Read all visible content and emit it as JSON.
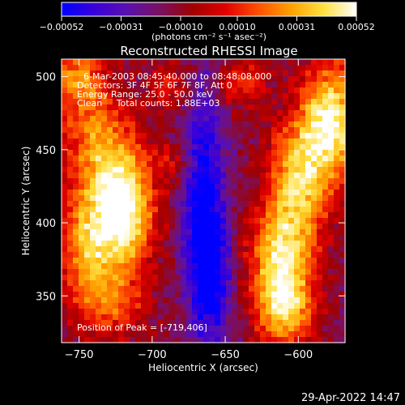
{
  "chart_data": {
    "type": "heatmap",
    "title": "Reconstructed RHESSI Image",
    "xlabel": "Heliocentric X (arcsec)",
    "ylabel": "Heliocentric Y (arcsec)",
    "xlim": [
      -762,
      -568
    ],
    "ylim": [
      318,
      512
    ],
    "x_ticks": [
      -750,
      -700,
      -650,
      -600
    ],
    "x_tick_labels": [
      "−750",
      "−700",
      "−650",
      "−600"
    ],
    "y_ticks": [
      350,
      400,
      450,
      500
    ],
    "y_tick_labels": [
      "350",
      "400",
      "450",
      "500"
    ],
    "colorbar": {
      "range": [
        -0.00052,
        0.00052
      ],
      "ticks": [
        -0.00052,
        -0.00031,
        -0.0001,
        0.0001,
        0.00031,
        0.00052
      ],
      "tick_labels": [
        "−0.00052",
        "−0.00031",
        "−0.00010",
        "0.00010",
        "0.00031",
        "0.00052"
      ],
      "unit_label": "(photons cm⁻² s⁻¹ asec⁻²)",
      "colormap_stops": [
        "#0000ff",
        "#3a00d8",
        "#5a10b0",
        "#7a1060",
        "#a00000",
        "#e00000",
        "#ff5000",
        "#ffa000",
        "#ffe040",
        "#ffffff"
      ]
    },
    "annotations": [
      "6-Mar-2003 08:45:40.000 to 08:48:08.000",
      "Detectors: 3F 4F 5F 6F 7F 8F, Att 0",
      "Energy Range: 25.0 - 50.0 keV",
      "Clean     Total counts: 1.88E+03"
    ],
    "peak_label": "Position of Peak = [-719,406]",
    "peak": [
      -719,
      406
    ],
    "features": [
      {
        "x": -719,
        "y": 406,
        "amplitude": 1.0,
        "sx": 14,
        "sy": 26
      },
      {
        "x": -735,
        "y": 450,
        "amplitude": 0.6,
        "sx": 18,
        "sy": 28
      },
      {
        "x": -745,
        "y": 385,
        "amplitude": 0.6,
        "sx": 14,
        "sy": 25
      },
      {
        "x": -730,
        "y": 345,
        "amplitude": 0.45,
        "sx": 18,
        "sy": 18
      },
      {
        "x": -752,
        "y": 500,
        "amplitude": 0.55,
        "sx": 14,
        "sy": 18
      },
      {
        "x": -688,
        "y": 495,
        "amplitude": 0.3,
        "sx": 10,
        "sy": 12
      },
      {
        "x": -685,
        "y": 440,
        "amplitude": 0.25,
        "sx": 10,
        "sy": 12
      },
      {
        "x": -578,
        "y": 470,
        "amplitude": 0.95,
        "sx": 14,
        "sy": 28
      },
      {
        "x": -600,
        "y": 430,
        "amplitude": 0.75,
        "sx": 14,
        "sy": 28
      },
      {
        "x": -612,
        "y": 385,
        "amplitude": 0.6,
        "sx": 16,
        "sy": 22
      },
      {
        "x": -610,
        "y": 345,
        "amplitude": 0.9,
        "sx": 14,
        "sy": 22
      },
      {
        "x": -638,
        "y": 495,
        "amplitude": 0.35,
        "sx": 12,
        "sy": 12
      },
      {
        "x": -665,
        "y": 420,
        "amplitude": -0.6,
        "sx": 10,
        "sy": 50
      },
      {
        "x": -660,
        "y": 360,
        "amplitude": -0.5,
        "sx": 10,
        "sy": 30
      }
    ]
  },
  "footer": {
    "timestamp": "29-Apr-2022 14:47"
  }
}
